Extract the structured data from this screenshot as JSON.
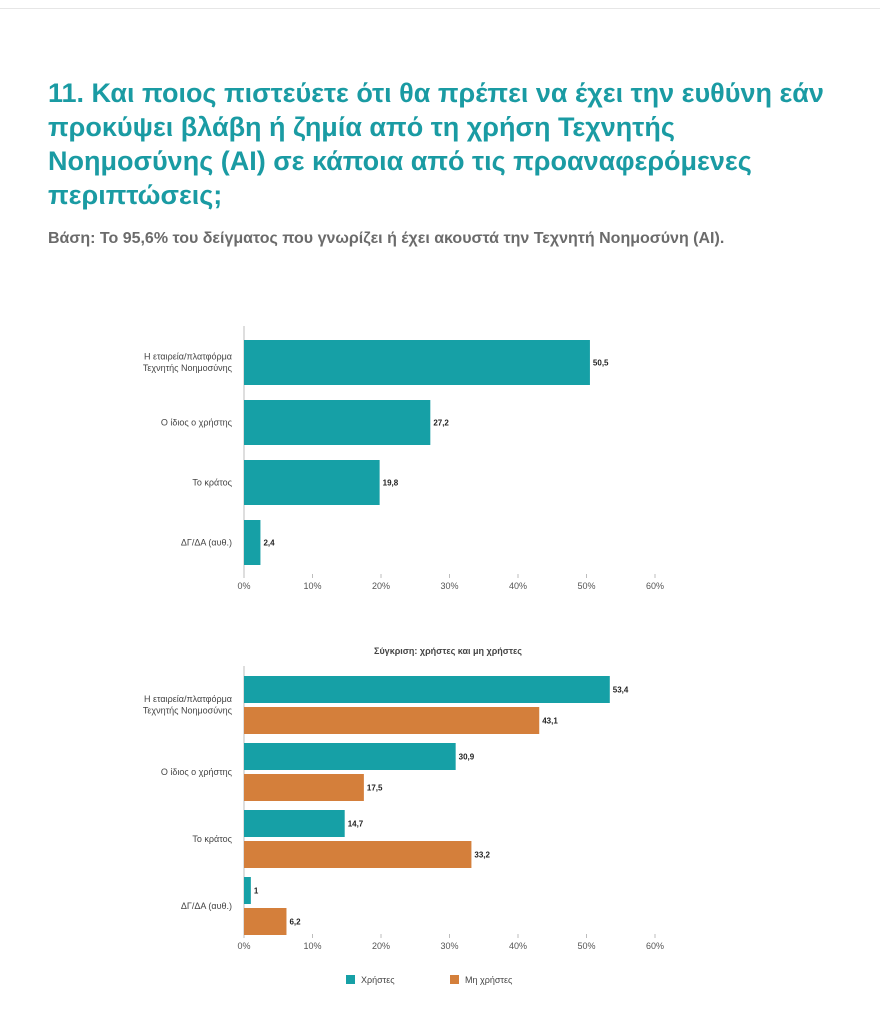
{
  "page": {
    "title": "11. Και ποιος πιστεύετε ότι θα πρέπει να έχει την ευθύνη εάν προκύψει βλάβη ή ζημία από τη χρήση Τεχνητής Νοημοσύνης (AI) σε κάποια από τις προαναφερόμενες περιπτώσεις;",
    "subtitle": "Βάση: Το 95,6% του δείγματος που γνωρίζει ή έχει ακουστά την Τεχνητή Νοημοσύνη (AI)."
  },
  "colors": {
    "teal": "#16a0a6",
    "orange": "#d47f3b",
    "title": "#1a9ba3"
  },
  "chart_data": [
    {
      "type": "bar",
      "orientation": "horizontal",
      "title": "",
      "categories": [
        [
          "Η εταιρεία/πλατφόρμα",
          "Τεχνητής Νοημοσύνης"
        ],
        [
          "Ο ίδιος ο χρήστης"
        ],
        [
          "Το κράτος"
        ],
        [
          "ΔΓ/ΔΑ (αυθ.)"
        ]
      ],
      "series": [
        {
          "values": [
            50.5,
            27.2,
            19.8,
            2.4
          ],
          "labels": [
            "50,5",
            "27,2",
            "19,8",
            "2,4"
          ],
          "color": "#16a0a6"
        }
      ],
      "xlim": [
        0,
        60
      ],
      "ticks": [
        "0%",
        "10%",
        "20%",
        "30%",
        "40%",
        "50%",
        "60%"
      ],
      "grid": false
    },
    {
      "type": "bar",
      "orientation": "horizontal",
      "title": "Σύγκριση: χρήστες και μη χρήστες",
      "categories": [
        [
          "Η εταιρεία/πλατφόρμα",
          "Τεχνητής Νοημοσύνης"
        ],
        [
          "Ο ίδιος ο χρήστης"
        ],
        [
          "Το κράτος"
        ],
        [
          "ΔΓ/ΔΑ (αυθ.)"
        ]
      ],
      "series": [
        {
          "name": "Χρήστες",
          "values": [
            53.4,
            30.9,
            14.7,
            1
          ],
          "labels": [
            "53,4",
            "30,9",
            "14,7",
            "1"
          ],
          "color": "#16a0a6"
        },
        {
          "name": "Μη χρήστες",
          "values": [
            43.1,
            17.5,
            33.2,
            6.2
          ],
          "labels": [
            "43,1",
            "17,5",
            "33,2",
            "6,2"
          ],
          "color": "#d47f3b"
        }
      ],
      "xlim": [
        0,
        60
      ],
      "ticks": [
        "0%",
        "10%",
        "20%",
        "30%",
        "40%",
        "50%",
        "60%"
      ],
      "legend": "bottom",
      "grid": false
    }
  ]
}
